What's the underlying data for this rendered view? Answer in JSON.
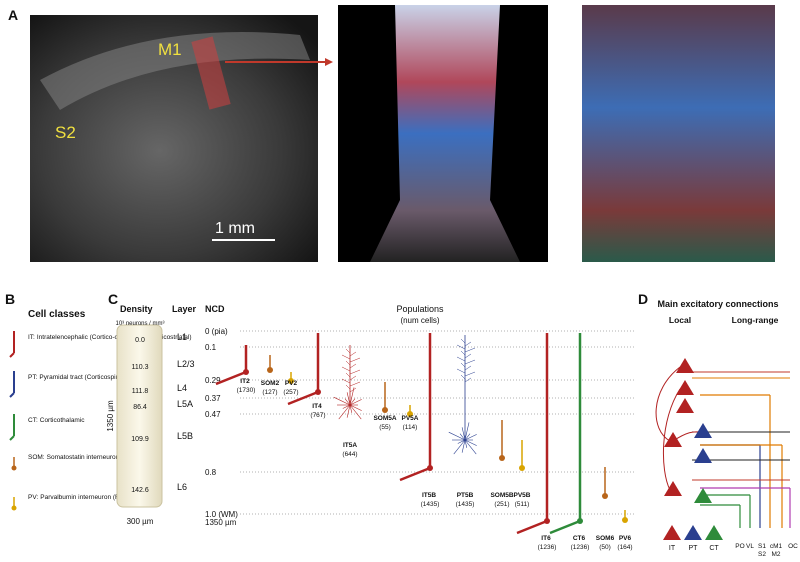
{
  "panel_a": {
    "label": "A",
    "m1": "M1",
    "s2": "S2",
    "scale": "1 mm"
  },
  "panel_b": {
    "label": "B",
    "title": "Cell classes",
    "items": [
      {
        "code": "IT:",
        "text": "Intratelencephalic (Cortico-cortical and Corticostriatal)"
      },
      {
        "code": "PT:",
        "text": "Pyramidal tract (Corticospinal)"
      },
      {
        "code": "CT:",
        "text": "Corticothalamic"
      },
      {
        "code": "SOM:",
        "text": "Somatostatin interneuron (LTS)"
      },
      {
        "code": "PV:",
        "text": "Parvalbumin interneuron (FS)"
      }
    ]
  },
  "panel_c": {
    "label": "C",
    "density_header": "Density",
    "layer_header": "Layer",
    "ncd_header": "NCD",
    "populations_header": "Populations",
    "populations_sub": "(num cells)",
    "density_unit": "10³ neurons / mm³",
    "densities": [
      "0.0",
      "110.3",
      "111.8",
      "86.4",
      "109.9",
      "142.6"
    ],
    "layers": [
      "L1",
      "L2/3",
      "L4",
      "L5A",
      "L5B",
      "L6"
    ],
    "ncd": [
      "0 (pia)",
      "0.1",
      "0.29",
      "0.37",
      "0.47",
      "0.8",
      "1.0 (WM)"
    ],
    "depth": "1350 µm",
    "height_label": "1350 µm",
    "width_label": "300 µm",
    "populations": [
      {
        "name": "IT2",
        "count": "(1730)"
      },
      {
        "name": "SOM2",
        "count": "(127)"
      },
      {
        "name": "PV2",
        "count": "(257)"
      },
      {
        "name": "IT4",
        "count": "(767)"
      },
      {
        "name": "IT5A",
        "count": "(644)"
      },
      {
        "name": "SOM5A",
        "count": "(55)"
      },
      {
        "name": "PV5A",
        "count": "(114)"
      },
      {
        "name": "IT5B",
        "count": "(1435)"
      },
      {
        "name": "PT5B",
        "count": "(1435)"
      },
      {
        "name": "SOM5B",
        "count": "(251)"
      },
      {
        "name": "PV5B",
        "count": "(511)"
      },
      {
        "name": "IT6",
        "count": "(1236)"
      },
      {
        "name": "CT6",
        "count": "(1236)"
      },
      {
        "name": "SOM6",
        "count": "(50)"
      },
      {
        "name": "PV6",
        "count": "(164)"
      }
    ]
  },
  "panel_d": {
    "label": "D",
    "title": "Main excitatory connections",
    "local": "Local",
    "long_range": "Long-range",
    "legend": [
      "IT",
      "PT",
      "CT"
    ],
    "regions": [
      "PO",
      "VL",
      "S1",
      "S2",
      "cM1",
      "M2",
      "OC"
    ]
  }
}
